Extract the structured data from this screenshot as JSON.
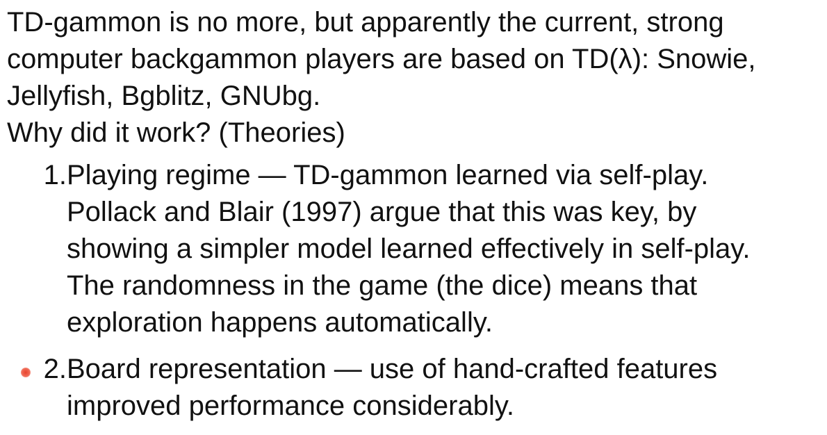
{
  "intro": {
    "line1": "TD-gammon is no more, but apparently the current, strong",
    "line2": "computer backgammon players are based on TD(λ): Snowie,",
    "line3": "Jellyfish, Bgblitz, GNUbg.",
    "question": "Why did it work? (Theories)"
  },
  "items": [
    {
      "number": "1.",
      "lines": [
        "Playing regime — TD-gammon learned via self-play.",
        "Pollack and Blair (1997) argue that this was key, by",
        "showing a simpler model learned effectively in self-play.",
        "The randomness in the game (the dice) means that",
        "exploration happens automatically."
      ]
    },
    {
      "number": "2.",
      "lines": [
        "Board representation — use of hand-crafted features",
        "improved performance considerably."
      ]
    }
  ],
  "colors": {
    "text": "#111111",
    "pointer": "#e8432e"
  }
}
